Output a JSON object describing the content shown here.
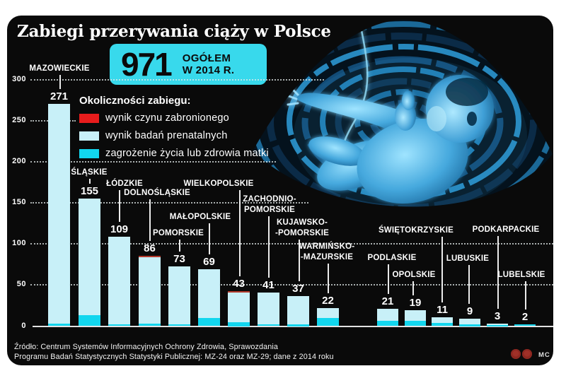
{
  "header": {
    "title": "Zabiegi przerywania ciąży w Polsce"
  },
  "total_badge": {
    "number": "971",
    "label_line1": "OGÓŁEM",
    "label_line2": "W 2014 R."
  },
  "legend": {
    "title": "Okoliczności zabiegu:",
    "items": [
      {
        "label": "wynik czynu zabronionego",
        "color": "#e81c1c"
      },
      {
        "label": "wynik badań prenatalnych",
        "color": "#c8f0f8"
      },
      {
        "label": "zagrożenie życia lub zdrowia matki",
        "color": "#12d6ee"
      }
    ]
  },
  "chart_data": {
    "type": "bar",
    "stacked": true,
    "title": "Zabiegi przerywania ciąży w Polsce",
    "total": 971,
    "total_label": "OGÓŁEM W 2014 R.",
    "categories": [
      "MAZOWIECKIE",
      "ŚLĄSKIE",
      "ŁÓDZKIE",
      "DOLNOŚLĄSKIE",
      "POMORSKIE",
      "MAŁOPOLSKIE",
      "WIELKOPOLSKIE",
      "ZACHODNIO-\nPOMORSKIE",
      "KUJAWSKO-\n-POMORSKIE",
      "WARMIŃSKO-\n-MAZURSKIE",
      "PODLASKIE",
      "OPOLSKIE",
      "ŚWIĘTOKRZYSKIE",
      "LUBUSKIE",
      "PODKARPACKIE",
      "LUBELSKIE"
    ],
    "values": [
      271,
      155,
      109,
      86,
      73,
      69,
      43,
      41,
      37,
      22,
      21,
      19,
      11,
      9,
      3,
      2
    ],
    "series": [
      {
        "name": "wynik czynu zabronionego",
        "color": "#b43a2c",
        "values": [
          0,
          0,
          0,
          2,
          0,
          0,
          2,
          0,
          0,
          0,
          0,
          0,
          0,
          0,
          0,
          0
        ]
      },
      {
        "name": "wynik badań prenatalnych",
        "color": "#c8f0f8",
        "values": [
          268,
          142,
          107,
          81,
          71,
          59,
          36,
          39,
          35,
          12,
          15,
          13,
          7,
          7,
          2,
          1
        ]
      },
      {
        "name": "zagrożenie życia lub zdrowia matki",
        "color": "#12d6ee",
        "values": [
          3,
          13,
          2,
          3,
          2,
          10,
          5,
          2,
          2,
          10,
          6,
          6,
          4,
          2,
          1,
          1
        ]
      }
    ],
    "ylim": [
      0,
      300
    ],
    "yticks": [
      0,
      50,
      100,
      150,
      200,
      250,
      300
    ],
    "grid": "dotted-horizontal",
    "legend_position": "upper-left"
  },
  "colors": {
    "badge": "#38d9ec",
    "panel": "#0a0a0a",
    "bar_pale": "#c8f0f8",
    "bar_cyan": "#12d6ee",
    "bar_red": "#b43a2c"
  },
  "footer": {
    "source_line1": "Źródło: Centrum Systemów Informacyjnych Ochrony Zdrowia, Sprawozdania",
    "source_line2": "Programu Badań Statystycznych Statystyki Publicznej: MZ-24 oraz MZ-29; dane z 2014 roku",
    "credit": "MC"
  }
}
